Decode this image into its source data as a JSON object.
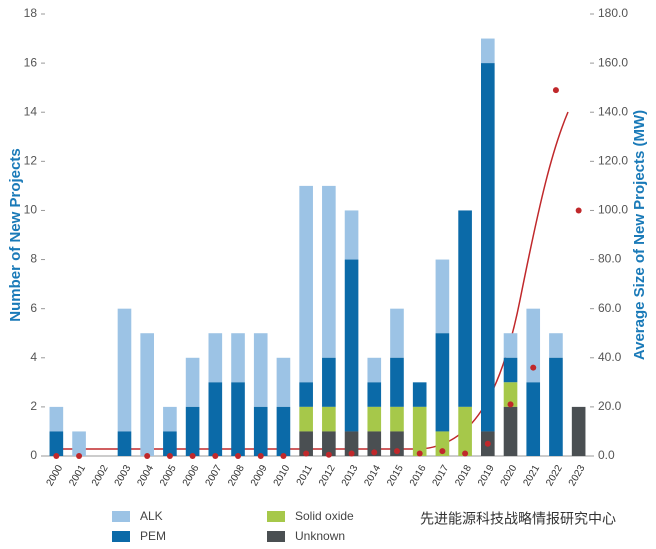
{
  "chart_data": {
    "type": "bar",
    "stacked": true,
    "y_label": "Number of New Projects",
    "y2_label": "Average Size of New Projects (MW)",
    "watermark": "先进能源科技战略情报研究中心",
    "categories": [
      "2000",
      "2001",
      "2002",
      "2003",
      "2004",
      "2005",
      "2006",
      "2007",
      "2008",
      "2009",
      "2010",
      "2011",
      "2012",
      "2013",
      "2014",
      "2015",
      "2016",
      "2017",
      "2018",
      "2019",
      "2020",
      "2021",
      "2022",
      "2023"
    ],
    "series": [
      {
        "name": "ALK",
        "color": "#9cc3e5",
        "values": [
          1,
          1,
          0,
          5,
          5,
          1,
          2,
          2,
          2,
          3,
          2,
          8,
          7,
          2,
          1,
          2,
          0,
          3,
          0,
          1,
          1,
          3,
          1,
          0
        ]
      },
      {
        "name": "PEM",
        "color": "#0b6aa8",
        "values": [
          1,
          0,
          0,
          1,
          0,
          1,
          2,
          3,
          3,
          2,
          2,
          1,
          2,
          7,
          1,
          2,
          1,
          4,
          8,
          15,
          1,
          3,
          4,
          0
        ]
      },
      {
        "name": "Solid oxide",
        "color": "#a6c84a",
        "values": [
          0,
          0,
          0,
          0,
          0,
          0,
          0,
          0,
          0,
          0,
          0,
          1,
          1,
          0,
          1,
          1,
          2,
          1,
          2,
          0,
          1,
          0,
          0,
          0
        ]
      },
      {
        "name": "Unknown",
        "color": "#4a4f52",
        "values": [
          0,
          0,
          0,
          0,
          0,
          0,
          0,
          0,
          0,
          0,
          0,
          1,
          1,
          1,
          1,
          1,
          0,
          0,
          0,
          1,
          2,
          0,
          0,
          2
        ]
      },
      {
        "type": "scatter",
        "axis": "y2",
        "color": "#c0282b",
        "values": [
          0,
          0,
          null,
          null,
          0,
          0,
          0,
          0,
          0,
          0,
          0,
          1,
          0.5,
          1,
          1.5,
          2,
          1,
          2,
          1,
          5,
          21,
          36,
          149,
          100
        ]
      }
    ],
    "ylim": [
      0,
      18
    ],
    "yticks": [
      0,
      2,
      4,
      6,
      8,
      10,
      12,
      14,
      16,
      18
    ],
    "y2lim": [
      0,
      180
    ],
    "y2ticks": [
      {
        "value": 0,
        "label": "0.0"
      },
      {
        "value": 20,
        "label": "20.0"
      },
      {
        "value": 40,
        "label": "40.0"
      },
      {
        "value": 60,
        "label": "60.0"
      },
      {
        "value": 80,
        "label": "80.0"
      },
      {
        "value": 100,
        "label": "100.0"
      },
      {
        "value": 120,
        "label": "120.0"
      },
      {
        "value": 140,
        "label": "140.0"
      },
      {
        "value": 160,
        "label": "160.0"
      },
      {
        "value": 180,
        "label": "180.0"
      }
    ],
    "legend": "bottom"
  }
}
